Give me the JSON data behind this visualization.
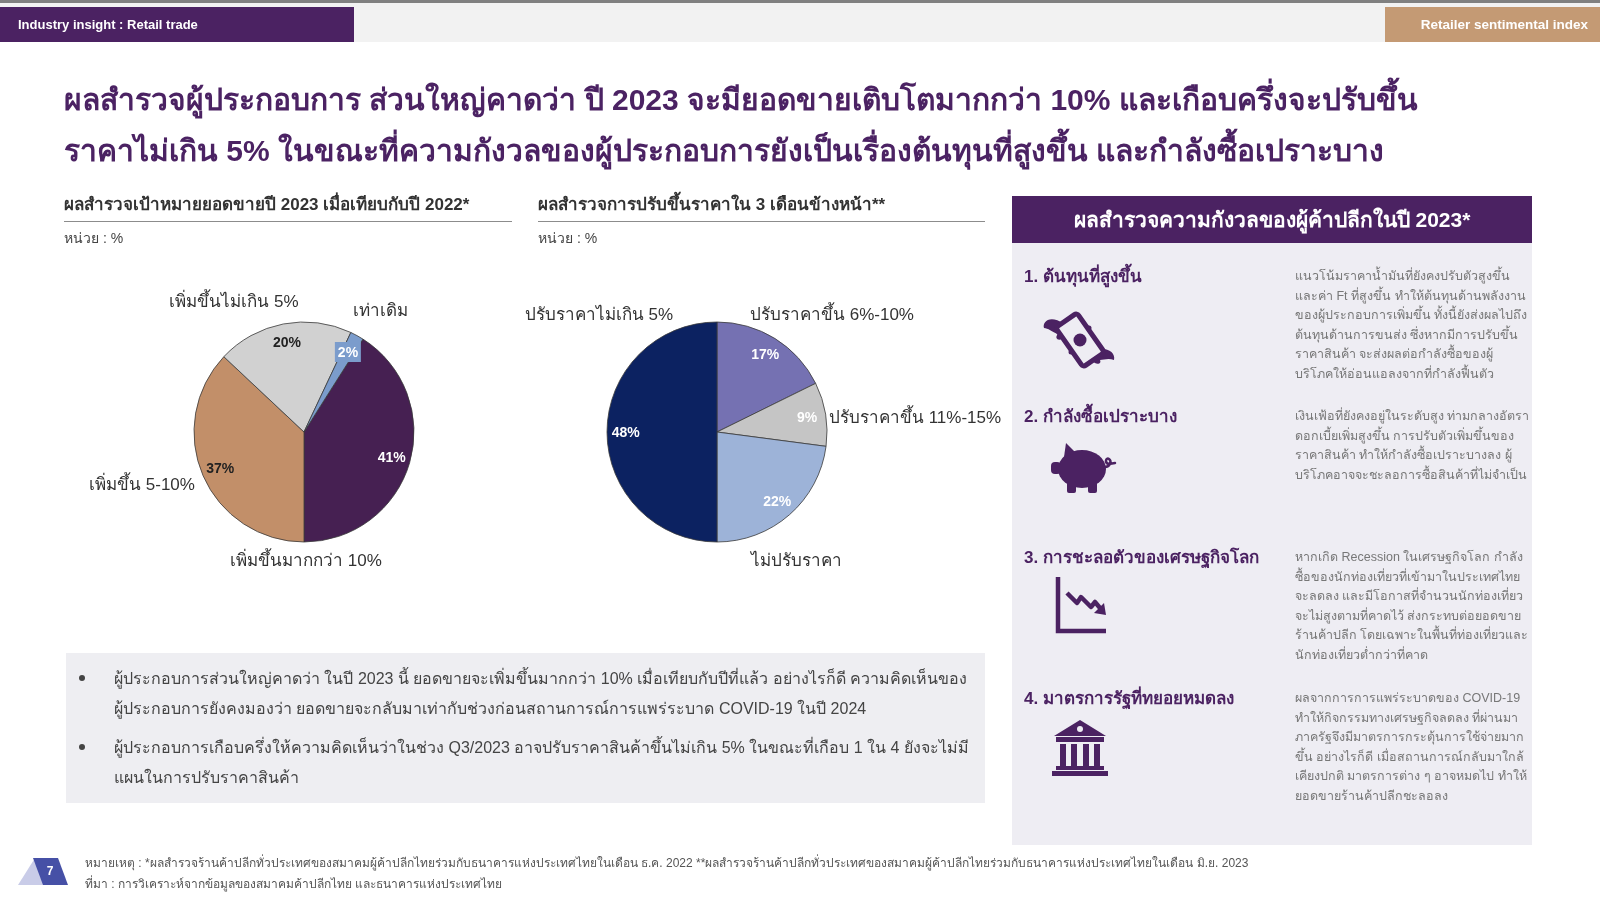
{
  "chart_data": [
    {
      "type": "other",
      "title": "ผลสำรวจผู้ประกอบการ ส่วนใหญ่คาดว่า ปี 2023 จะมียอดขายเติบโตมากกว่า 10% และเกือบครึ่งจะปรับขึ้นราคาไม่เกิน 5% ในขณะที่ความกังวลของผู้ประกอบการยังเป็นเรื่องต้นทุนที่สูงขึ้น และกำลังซื้อเปราะบาง",
      "annotations": [
        "Industry insight : Retail trade",
        "Retailer sentimental index"
      ]
    },
    {
      "type": "pie",
      "title": "ผลสำรวจเป้าหมายยอดขายปี 2023 เมื่อเทียบกับปี 2022*",
      "subtitle": "หน่วย : %",
      "categories": [
        "เพิ่มขึ้นมากกว่า 10%",
        "เพิ่มขึ้น 5-10%",
        "เพิ่มขึ้นไม่เกิน 5%",
        "เท่าเดิม"
      ],
      "values": [
        41,
        37,
        20,
        2
      ],
      "colors": [
        "#462052",
        "#c28f69",
        "#d1d1d1",
        "#7b9ccc"
      ],
      "value_labels": [
        "41%",
        "37%",
        "20%",
        "2%"
      ]
    },
    {
      "type": "pie",
      "title": "ผลสำรวจการปรับขึ้นราคาใน 3 เดือนข้างหน้า**",
      "subtitle": "หน่วย : %",
      "categories": [
        "ปรับราคาขึ้น 6%-10%",
        "ปรับราคาขึ้น 11%-15%",
        "ไม่ปรับราคา",
        "ปรับราคาไม่เกิน 5%"
      ],
      "values": [
        17,
        9,
        22,
        48
      ],
      "colors": [
        "#7571b2",
        "#c5c5c5",
        "#9db3d8",
        "#0c2261"
      ],
      "value_labels": [
        "17%",
        "9%",
        "22%",
        "48%"
      ]
    },
    {
      "type": "other",
      "title": "ผลสำรวจความกังวลของผู้ค้าปลีกในปี 2023*",
      "annotations": [
        "1. ต้นทุนที่สูงขึ้น",
        "แนวโน้มราคาน้ำมันที่ยังคงปรับตัวสูงขึ้น และค่า Ft ที่สูงขึ้น ทำให้ต้นทุนด้านพลังงานของผู้ประกอบการเพิ่มขึ้น ทั้งนี้ยังส่งผลไปถึงต้นทุนด้านการขนส่ง ซึ่งหากมีการปรับขึ้นราคาสินค้า จะส่งผลต่อกำลังซื้อของผู้บริโภคให้อ่อนแอลงจากที่กำลังฟื้นตัว",
        "2. กำลังซื้อเปราะบาง",
        "เงินเฟ้อที่ยังคงอยู่ในระดับสูง ท่ามกลางอัตราดอกเบี้ยเพิ่มสูงขึ้น การปรับตัวเพิ่มขึ้นของราคาสินค้า ทำให้กำลังซื้อเปราะบางลง ผู้บริโภคอาจจะชะลอการซื้อสินค้าที่ไม่จำเป็น",
        "3. การชะลอตัวของเศรษฐกิจโลก",
        "หากเกิด Recession ในเศรษฐกิจโลก กำลังซื้อของนักท่องเที่ยวที่เข้ามาในประเทศไทยจะลดลง และมีโอกาสที่จำนวนนักท่องเที่ยวจะไม่สูงตามที่คาดไว้ ส่งกระทบต่อยอดขายร้านค้าปลีก โดยเฉพาะในพื้นที่ท่องเที่ยวและนักท่องเที่ยวต่ำกว่าที่คาด",
        "4. มาตรการรัฐที่ทยอยหมดลง",
        "ผลจากการการแพร่ระบาดของ COVID-19 ทำให้กิจกรรมทางเศรษฐกิจลดลง ที่ผ่านมาภาครัฐจึงมีมาตรการกระตุ้นการใช้จ่ายมากขึ้น อย่างไรก็ดี เมื่อสถานการณ์กลับมาใกล้เคียงปกติ มาตรการต่าง ๆ อาจหมดไป ทำให้ยอดขายร้านค้าปลีกชะลอลง"
      ]
    },
    {
      "type": "other",
      "annotations": [
        "ผู้ประกอบการส่วนใหญ่คาดว่า ในปี 2023 นี้ ยอดขายจะเพิ่มขึ้นมากกว่า 10% เมื่อเทียบกับปีที่แล้ว อย่างไรก็ดี ความคิดเห็นของผู้ประกอบการยังคงมองว่า ยอดขายจะกลับมาเท่ากับช่วงก่อนสถานการณ์การแพร่ระบาด COVID-19 ในปี 2024",
        "ผู้ประกอบการเกือบครึ่งให้ความคิดเห็นว่าในช่วง Q3/2023 อาจปรับราคาสินค้าขึ้นไม่เกิน 5% ในขณะที่เกือบ 1 ใน 4 ยังจะไม่มีแผนในการปรับราคาสินค้า"
      ]
    },
    {
      "type": "other",
      "annotations": [
        "หมายเหตุ : *ผลสำรวจร้านค้าปลีกทั่วประเทศของสมาคมผู้ค้าปลีกไทยร่วมกับธนาคารแห่งประเทศไทยในเดือน ธ.ค. 2022 **ผลสำรวจร้านค้าปลีกทั่วประเทศของสมาคมผู้ค้าปลีกไทยร่วมกับธนาคารแห่งประเทศไทยในเดือน มิ.ย. 2023",
        "ที่มา : การวิเคราะห์จากข้อมูลของสมาคมค้าปลีกไทย และธนาคารแห่งประเทศไทย",
        "7"
      ]
    }
  ]
}
